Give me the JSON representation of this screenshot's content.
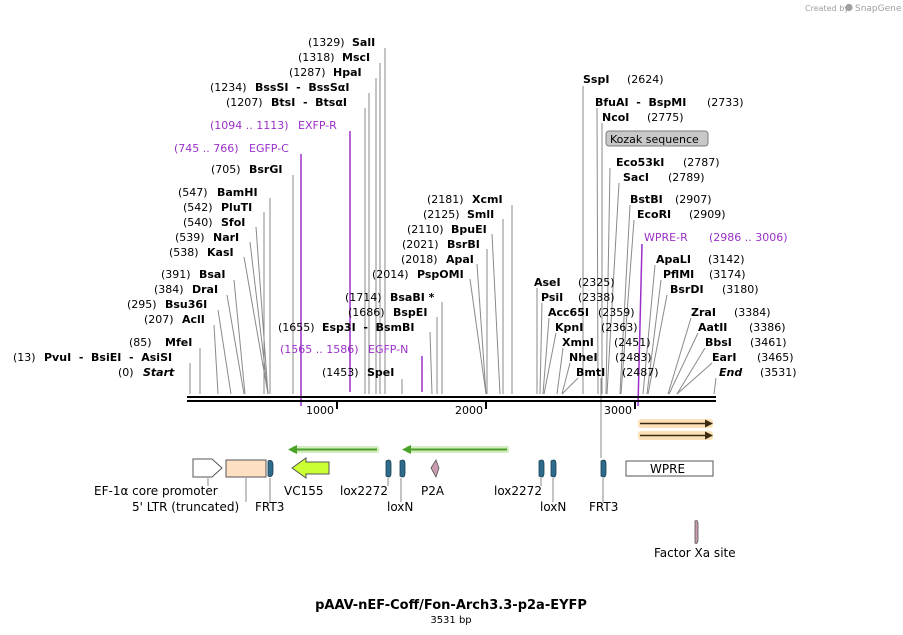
{
  "credit": {
    "prefix": "Created by",
    "brand": "SnapGene"
  },
  "map": {
    "title": "pAAV-nEF-Coff/Fon-Arch3.3-p2a-EYFP",
    "length_label": "3531 bp",
    "total_bp": 3531
  },
  "ruler": {
    "ticks": [
      {
        "label": "1000"
      },
      {
        "label": "2000"
      },
      {
        "label": "3000"
      }
    ]
  },
  "left_labels": {
    "sites": [
      {
        "pos": "(1329)",
        "name": "SalI"
      },
      {
        "pos": "(1318)",
        "name": "MscI"
      },
      {
        "pos": "(1287)",
        "name": "HpaI"
      },
      {
        "pos": "(1234)",
        "name": "BssSI  -  BssSαI"
      },
      {
        "pos": "(1207)",
        "name": "BtsI  -  BtsαI"
      },
      {
        "pos": "(705)",
        "name": "BsrGI"
      },
      {
        "pos": "(547)",
        "name": "BamHI"
      },
      {
        "pos": "(542)",
        "name": "PluTI"
      },
      {
        "pos": "(540)",
        "name": "SfoI"
      },
      {
        "pos": "(539)",
        "name": "NarI"
      },
      {
        "pos": "(538)",
        "name": "KasI"
      },
      {
        "pos": "(391)",
        "name": "BsaI"
      },
      {
        "pos": "(384)",
        "name": "DraI"
      },
      {
        "pos": "(295)",
        "name": "Bsu36I"
      },
      {
        "pos": "(207)",
        "name": "AclI"
      },
      {
        "pos": "(85)",
        "name": "MfeI"
      },
      {
        "pos": "(13)",
        "name": "PvuI  -  BsiEI  -  AsiSI"
      },
      {
        "pos": "(0)",
        "name": "Start"
      }
    ],
    "features": [
      {
        "range": "(1094 .. 1113)",
        "name": "EXFP-R"
      },
      {
        "range": "(745 .. 766)",
        "name": "EGFP-C"
      },
      {
        "range": "(1565 .. 1586)",
        "name": "EGFP-N"
      }
    ]
  },
  "middle_labels": {
    "sites": [
      {
        "pos": "(2181)",
        "name": "XcmI"
      },
      {
        "pos": "(2125)",
        "name": "SmlI"
      },
      {
        "pos": "(2110)",
        "name": "BpuEI"
      },
      {
        "pos": "(2021)",
        "name": "BsrBI"
      },
      {
        "pos": "(2018)",
        "name": "ApaI"
      },
      {
        "pos": "(2014)",
        "name": "PspOMI"
      },
      {
        "pos": "(1714)",
        "name": "BsaBI *"
      },
      {
        "pos": "(1686)",
        "name": "BspEI"
      },
      {
        "pos": "(1655)",
        "name": "Esp3I  -  BsmBI"
      },
      {
        "pos": "(1453)",
        "name": "SpeI"
      }
    ]
  },
  "right_labels": {
    "sites": [
      {
        "name": "SspI",
        "pos": "(2624)"
      },
      {
        "name": "BfuAI  -  BspMI",
        "pos": "(2733)"
      },
      {
        "name": "NcoI",
        "pos": "(2775)"
      },
      {
        "name": "Eco53kI",
        "pos": "(2787)"
      },
      {
        "name": "SacI",
        "pos": "(2789)"
      },
      {
        "name": "BstBI",
        "pos": "(2907)"
      },
      {
        "name": "EcoRI",
        "pos": "(2909)"
      },
      {
        "name": "ApaLI",
        "pos": "(3142)"
      },
      {
        "name": "PflMI",
        "pos": "(3174)"
      },
      {
        "name": "BsrDI",
        "pos": "(3180)"
      },
      {
        "name": "ZraI",
        "pos": "(3384)"
      },
      {
        "name": "AatII",
        "pos": "(3386)"
      },
      {
        "name": "BbsI",
        "pos": "(3461)"
      },
      {
        "name": "EarI",
        "pos": "(3465)"
      },
      {
        "name": "End",
        "pos": "(3531)"
      },
      {
        "name": "AseI",
        "pos": "(2325)"
      },
      {
        "name": "PsiI",
        "pos": "(2338)"
      },
      {
        "name": "Acc65I",
        "pos": "(2359)"
      },
      {
        "name": "KpnI",
        "pos": "(2363)"
      },
      {
        "name": "XmnI",
        "pos": "(2451)"
      },
      {
        "name": "NheI",
        "pos": "(2483)"
      },
      {
        "name": "BmtI",
        "pos": "(2487)"
      }
    ],
    "kozak": "Kozak sequence",
    "wpre_primer": {
      "name": "WPRE-R",
      "range": "(2986 .. 3006)"
    }
  },
  "features": {
    "ef1a": "EF-1α core promoter",
    "ltr": "5' LTR (truncated)",
    "frt3_left": "FRT3",
    "vc155": "VC155",
    "lox2272_left": "lox2272",
    "loxn_left": "loxN",
    "p2a": "P2A",
    "lox2272_right": "lox2272",
    "loxn_right": "loxN",
    "frt3_right": "FRT3",
    "wpre": "WPRE",
    "factor_xa": "Factor Xa site"
  },
  "colors": {
    "primer": "#9b30c8",
    "backbone": "#000000",
    "site_line": "#8a8a8a",
    "ltr_fill": "#fde0c4",
    "vc155_fill": "#ccff33",
    "site_marker": "#2f6b8a",
    "p2a_fill": "#c99ab0",
    "orf_green": "#4aa128",
    "orf_orange": "#e8a030",
    "kozak_fill": "#c8c8c8"
  }
}
